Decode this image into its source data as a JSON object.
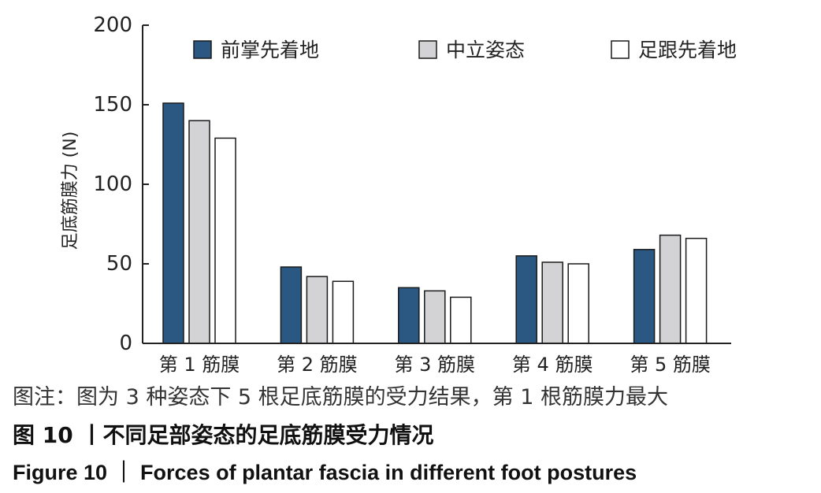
{
  "chart_data": {
    "type": "bar",
    "ylabel": "足底筋膜力 (N)",
    "ylim": [
      0,
      200
    ],
    "yticks": [
      0,
      50,
      100,
      150,
      200
    ],
    "categories": [
      "第 1 筋膜",
      "第 2 筋膜",
      "第 3 筋膜",
      "第 4 筋膜",
      "第 5 筋膜"
    ],
    "series": [
      {
        "name": "前掌先着地",
        "color": "#2a5883",
        "values": [
          151,
          48,
          35,
          55,
          59
        ]
      },
      {
        "name": "中立姿态",
        "color": "#d3d3d5",
        "values": [
          140,
          42,
          33,
          51,
          68
        ]
      },
      {
        "name": "足跟先着地",
        "color": "#ffffff",
        "values": [
          129,
          39,
          29,
          50,
          66
        ]
      }
    ],
    "legend_position": "top",
    "grid": false
  },
  "caption": {
    "note": "图注：图为 3 种姿态下 5 根足底筋膜的受力结果，第 1 根筋膜力最大",
    "title_zh": "图 10 丨不同足部姿态的足底筋膜受力情况",
    "title_en": "Figure 10 ｜ Forces of plantar fascia in different foot postures"
  }
}
